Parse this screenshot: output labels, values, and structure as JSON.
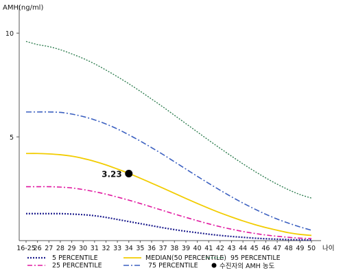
{
  "chart_data": {
    "type": "line",
    "ylabel": "AMH(ng/ml)",
    "xlabel": "나이",
    "ylim": [
      0,
      11
    ],
    "yticks": [
      5,
      10
    ],
    "x": [
      "16-25",
      "26",
      "27",
      "28",
      "29",
      "30",
      "31",
      "32",
      "33",
      "34",
      "35",
      "36",
      "37",
      "38",
      "39",
      "40",
      "41",
      "42",
      "43",
      "44",
      "45",
      "46",
      "47",
      "48",
      "49",
      "50"
    ],
    "series": [
      {
        "name": "5 PERCENTILE",
        "color": "#1a1a8c",
        "dash": "2,2",
        "width": 2.2,
        "values": [
          1.3,
          1.3,
          1.3,
          1.3,
          1.28,
          1.25,
          1.2,
          1.12,
          1.02,
          0.92,
          0.82,
          0.72,
          0.62,
          0.53,
          0.45,
          0.38,
          0.31,
          0.25,
          0.2,
          0.16,
          0.12,
          0.09,
          0.07,
          0.05,
          0.04,
          0.03
        ]
      },
      {
        "name": "25 PERCENTILE",
        "color": "#e0169f",
        "dash": "7,3,2,3",
        "width": 1.6,
        "values": [
          2.6,
          2.6,
          2.6,
          2.58,
          2.54,
          2.46,
          2.36,
          2.24,
          2.1,
          1.95,
          1.79,
          1.62,
          1.45,
          1.28,
          1.12,
          0.96,
          0.81,
          0.67,
          0.55,
          0.44,
          0.35,
          0.27,
          0.21,
          0.16,
          0.12,
          0.1
        ]
      },
      {
        "name": "MEDIAN(50 PERCENTILE)",
        "color": "#f2cc00",
        "dash": "",
        "width": 1.8,
        "values": [
          4.2,
          4.2,
          4.18,
          4.14,
          4.07,
          3.96,
          3.82,
          3.65,
          3.45,
          3.24,
          3.01,
          2.77,
          2.53,
          2.28,
          2.03,
          1.79,
          1.56,
          1.34,
          1.14,
          0.95,
          0.78,
          0.63,
          0.5,
          0.38,
          0.3,
          0.25
        ]
      },
      {
        "name": "75 PERCENTILE",
        "color": "#3a5fc0",
        "dash": "8,3,2,3",
        "width": 1.6,
        "values": [
          6.2,
          6.2,
          6.2,
          6.18,
          6.1,
          5.98,
          5.82,
          5.62,
          5.38,
          5.1,
          4.8,
          4.48,
          4.15,
          3.8,
          3.45,
          3.1,
          2.76,
          2.43,
          2.11,
          1.81,
          1.53,
          1.27,
          1.04,
          0.84,
          0.66,
          0.5
        ]
      },
      {
        "name": "95 PERCENTILE",
        "color": "#2e7d4f",
        "dash": "2,2",
        "width": 1.4,
        "values": [
          9.6,
          9.45,
          9.35,
          9.2,
          9.0,
          8.78,
          8.52,
          8.22,
          7.9,
          7.56,
          7.2,
          6.82,
          6.44,
          6.04,
          5.64,
          5.24,
          4.84,
          4.45,
          4.07,
          3.7,
          3.35,
          3.02,
          2.72,
          2.45,
          2.22,
          2.05
        ]
      }
    ],
    "point": {
      "x": "34",
      "y": 3.23,
      "label": "3.23",
      "legend": "수진자의 AMH 농도",
      "color": "#000000"
    }
  }
}
